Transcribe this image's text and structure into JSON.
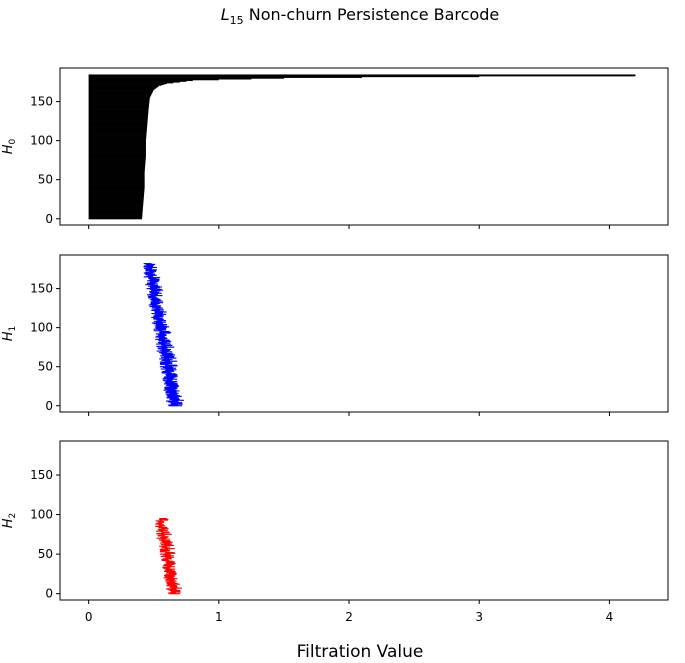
{
  "chart_data": {
    "type": "barcode",
    "title_main": "L",
    "title_sub": "15",
    "title_rest": " Non-churn Persistence Barcode",
    "xlabel": "Filtration Value",
    "xlim": [
      -0.22,
      4.45
    ],
    "xticks": [
      0,
      1,
      2,
      3,
      4
    ],
    "xtick_labels": [
      "0",
      "1",
      "2",
      "3",
      "4"
    ],
    "panels": [
      {
        "ylabel_main": "H",
        "ylabel_sub": "0",
        "color": "#000000",
        "n_bars": 185,
        "ylim": [
          -8,
          193
        ],
        "yticks": [
          0,
          50,
          100,
          150
        ],
        "ytick_labels": [
          "0",
          "50",
          "100",
          "150"
        ],
        "births": {
          "from": 0.0,
          "to": 0.0
        },
        "deaths": [
          [
            0,
            0.41
          ],
          [
            20,
            0.42
          ],
          [
            40,
            0.43
          ],
          [
            60,
            0.43
          ],
          [
            80,
            0.44
          ],
          [
            100,
            0.44
          ],
          [
            120,
            0.45
          ],
          [
            140,
            0.46
          ],
          [
            155,
            0.47
          ],
          [
            165,
            0.5
          ],
          [
            170,
            0.54
          ],
          [
            173,
            0.6
          ],
          [
            175,
            0.7
          ],
          [
            177,
            0.8
          ],
          [
            178,
            1.0
          ],
          [
            180,
            1.5
          ],
          [
            181,
            2.1
          ],
          [
            182,
            3.0
          ],
          [
            183,
            4.2
          ],
          [
            184,
            4.2
          ]
        ]
      },
      {
        "ylabel_main": "H",
        "ylabel_sub": "1",
        "color": "#0000ff",
        "n_bars": 183,
        "ylim": [
          -8,
          193
        ],
        "yticks": [
          0,
          50,
          100,
          150
        ],
        "ytick_labels": [
          "0",
          "50",
          "100",
          "150"
        ],
        "births": {
          "from": 0.62,
          "to": 0.43
        },
        "lengths": {
          "from": 0.05,
          "to": 0.09
        }
      },
      {
        "ylabel_main": "H",
        "ylabel_sub": "2",
        "color": "#ff0000",
        "n_bars": 96,
        "ylim": [
          -8,
          193
        ],
        "yticks": [
          0,
          50,
          100,
          150
        ],
        "ytick_labels": [
          "0",
          "50",
          "100",
          "150"
        ],
        "births": {
          "from": 0.62,
          "to": 0.52
        },
        "lengths": {
          "from": 0.04,
          "to": 0.07
        }
      }
    ]
  }
}
